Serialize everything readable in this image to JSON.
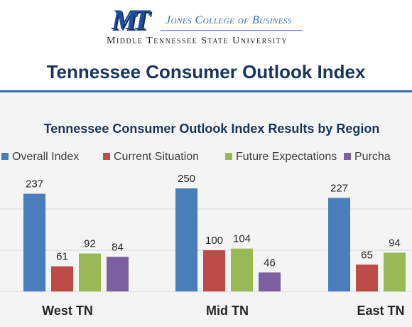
{
  "header": {
    "logo_text": "MT",
    "college": "Jones College of Business",
    "university": "Middle Tennessee State University",
    "page_title": "Tennessee Consumer Outlook Index"
  },
  "chart_data": {
    "type": "bar",
    "title": "Tennessee Consumer Outlook Index Results by Region",
    "xlabel": "",
    "ylabel": "",
    "categories": [
      "West TN",
      "Mid TN",
      "East TN"
    ],
    "series": [
      {
        "name": "Overall Index",
        "color": "#4a7ebb",
        "values": [
          237,
          250,
          227
        ]
      },
      {
        "name": "Current Situation",
        "color": "#be4b48",
        "values": [
          61,
          100,
          65
        ]
      },
      {
        "name": "Future Expectations",
        "color": "#98b954",
        "values": [
          92,
          104,
          94
        ]
      },
      {
        "name": "Purcha",
        "color": "#7d60a0",
        "values": [
          84,
          46,
          null
        ]
      }
    ],
    "value_labels": [
      [
        "237",
        "61",
        "92",
        "84"
      ],
      [
        "250",
        "100",
        "104",
        "46"
      ],
      [
        "227",
        "65",
        "94",
        ""
      ]
    ],
    "ylim": [
      0,
      280
    ],
    "grid": true,
    "legend_position": "top"
  }
}
